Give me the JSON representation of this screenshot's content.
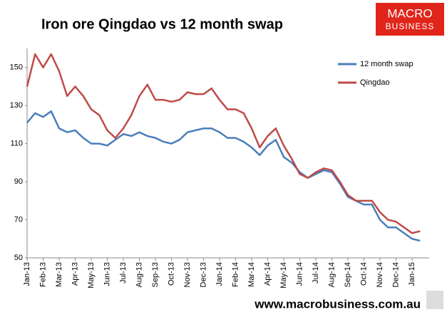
{
  "chart_data": {
    "type": "line",
    "title": "Iron ore Qingdao vs 12 month swap",
    "categories": [
      "Jan-13",
      null,
      "Feb-13",
      null,
      "Mar-13",
      null,
      "Apr-13",
      null,
      "May-13",
      null,
      "Jun-13",
      null,
      "Jul-13",
      null,
      "Aug-13",
      null,
      "Sep-13",
      null,
      "Oct-13",
      null,
      "Nov-13",
      null,
      "Dec-13",
      null,
      "Jan-14",
      null,
      "Feb-14",
      null,
      "Mar-14",
      null,
      "Apr-14",
      null,
      "May-14",
      null,
      "Jun-14",
      null,
      "Jul-14",
      null,
      "Aug-14",
      null,
      "Sep-14",
      null,
      "Oct-14",
      null,
      "Nov-14",
      null,
      "Dec-14",
      null,
      "Jan-15",
      null
    ],
    "series": [
      {
        "name": "12 month swap",
        "color": "#4a7ebb",
        "values": [
          121,
          126,
          124,
          127,
          118,
          116,
          117,
          113,
          110,
          110,
          109,
          112,
          115,
          114,
          116,
          114,
          113,
          111,
          110,
          112,
          116,
          117,
          118,
          118,
          116,
          113,
          113,
          111,
          108,
          104,
          109,
          112,
          103,
          100,
          95,
          92,
          94,
          96,
          95,
          89,
          82,
          80,
          78,
          78,
          70,
          66,
          66,
          63,
          60,
          59
        ]
      },
      {
        "name": "Qingdao",
        "color": "#be4b48",
        "values": [
          140,
          157,
          150,
          157,
          148,
          135,
          140,
          135,
          128,
          125,
          117,
          113,
          118,
          125,
          135,
          141,
          133,
          133,
          132,
          133,
          137,
          136,
          136,
          139,
          133,
          128,
          128,
          126,
          118,
          108,
          114,
          118,
          109,
          102,
          94,
          92,
          95,
          97,
          96,
          90,
          83,
          80,
          80,
          80,
          74,
          70,
          69,
          66,
          63,
          64
        ]
      }
    ],
    "ylim": [
      50,
      160
    ],
    "yticks": [
      50,
      70,
      90,
      110,
      130,
      150
    ],
    "grid": false,
    "legend": "top-right"
  },
  "logo": {
    "lines": [
      "MACRO",
      "BUSINESS"
    ]
  },
  "footer": "www.macrobusiness.com.au"
}
